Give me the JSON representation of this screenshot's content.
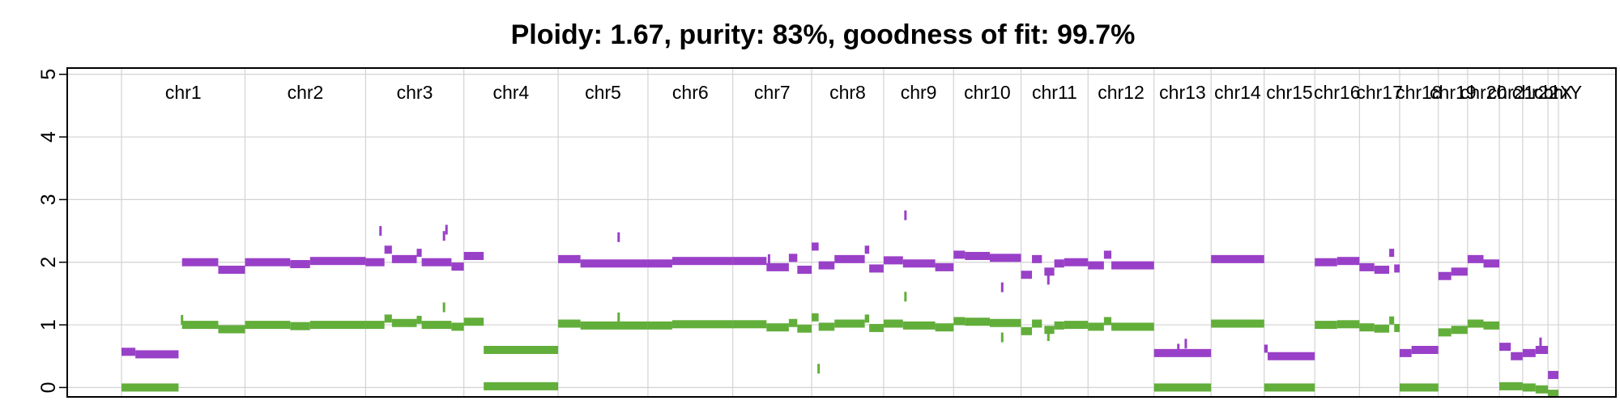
{
  "chart_data": {
    "type": "scatter",
    "title": "Ploidy: 1.67, purity: 83%, goodness of fit: 99.7%",
    "xlabel": "",
    "ylabel": "",
    "ylim": [
      -0.15,
      5.1
    ],
    "y_ticks": [
      "0",
      "1",
      "2",
      "3",
      "4",
      "5"
    ],
    "grid": true,
    "colors": {
      "total_copy_number": "#9940C8",
      "minor_copy_number": "#62AE3A",
      "grid": "#d3d3d3",
      "frame": "#000000"
    },
    "chromosomes": [
      {
        "label": "chr1",
        "start": 0,
        "end": 249
      },
      {
        "label": "chr2",
        "start": 249,
        "end": 492
      },
      {
        "label": "chr3",
        "start": 492,
        "end": 690
      },
      {
        "label": "chr4",
        "start": 690,
        "end": 880
      },
      {
        "label": "chr5",
        "start": 880,
        "end": 1061
      },
      {
        "label": "chr6",
        "start": 1061,
        "end": 1232
      },
      {
        "label": "chr7",
        "start": 1232,
        "end": 1391
      },
      {
        "label": "chr8",
        "start": 1391,
        "end": 1536
      },
      {
        "label": "chr9",
        "start": 1536,
        "end": 1677
      },
      {
        "label": "chr10",
        "start": 1677,
        "end": 1813
      },
      {
        "label": "chr11",
        "start": 1813,
        "end": 1948
      },
      {
        "label": "chr12",
        "start": 1948,
        "end": 2081
      },
      {
        "label": "chr13",
        "start": 2081,
        "end": 2196
      },
      {
        "label": "chr14",
        "start": 2196,
        "end": 2303
      },
      {
        "label": "chr15",
        "start": 2303,
        "end": 2405
      },
      {
        "label": "chr16",
        "start": 2405,
        "end": 2495
      },
      {
        "label": "chr17",
        "start": 2495,
        "end": 2576
      },
      {
        "label": "chr18",
        "start": 2576,
        "end": 2654
      },
      {
        "label": "chr19",
        "start": 2654,
        "end": 2713
      },
      {
        "label": "chr20",
        "start": 2713,
        "end": 2777
      },
      {
        "label": "chr21",
        "start": 2777,
        "end": 2824
      },
      {
        "label": "chr22",
        "start": 2824,
        "end": 2875
      },
      {
        "label": "chrX",
        "start": 2875,
        "end": 2896
      },
      {
        "label": "chrY",
        "start": 2896,
        "end": 2914
      }
    ],
    "series": [
      {
        "segments": [
          {
            "chr": "chr1",
            "start": 0,
            "end": 28,
            "value": 0.57
          },
          {
            "chr": "chr1",
            "start": 28,
            "end": 115,
            "value": 0.53
          },
          {
            "chr": "chr1",
            "start": 122,
            "end": 195,
            "value": 2.0
          },
          {
            "chr": "chr1",
            "start": 195,
            "end": 249,
            "value": 1.88
          },
          {
            "chr": "chr2",
            "start": 249,
            "end": 340,
            "value": 2.0
          },
          {
            "chr": "chr2",
            "start": 340,
            "end": 380,
            "value": 1.97
          },
          {
            "chr": "chr2",
            "start": 380,
            "end": 492,
            "value": 2.02
          },
          {
            "chr": "chr3",
            "start": 492,
            "end": 530,
            "value": 2.0
          },
          {
            "chr": "chr3",
            "start": 530,
            "end": 545,
            "value": 2.2
          },
          {
            "chr": "chr3",
            "start": 545,
            "end": 595,
            "value": 2.05
          },
          {
            "chr": "chr3",
            "start": 595,
            "end": 605,
            "value": 2.15
          },
          {
            "chr": "chr3",
            "start": 605,
            "end": 665,
            "value": 2.0
          },
          {
            "chr": "chr3",
            "start": 665,
            "end": 690,
            "value": 1.93
          },
          {
            "chr": "chr4",
            "start": 690,
            "end": 730,
            "value": 2.1
          },
          {
            "chr": "chr5",
            "start": 880,
            "end": 925,
            "value": 2.05
          },
          {
            "chr": "chr5",
            "start": 925,
            "end": 1061,
            "value": 1.98
          },
          {
            "chr": "chr6",
            "start": 1061,
            "end": 1110,
            "value": 1.98
          },
          {
            "chr": "chr6",
            "start": 1110,
            "end": 1232,
            "value": 2.02
          },
          {
            "chr": "chr7",
            "start": 1232,
            "end": 1300,
            "value": 2.02
          },
          {
            "chr": "chr7",
            "start": 1300,
            "end": 1345,
            "value": 1.92
          },
          {
            "chr": "chr7",
            "start": 1345,
            "end": 1362,
            "value": 2.07
          },
          {
            "chr": "chr7",
            "start": 1362,
            "end": 1391,
            "value": 1.88
          },
          {
            "chr": "chr8",
            "start": 1391,
            "end": 1405,
            "value": 2.25
          },
          {
            "chr": "chr8",
            "start": 1405,
            "end": 1437,
            "value": 1.95
          },
          {
            "chr": "chr8",
            "start": 1437,
            "end": 1498,
            "value": 2.05
          },
          {
            "chr": "chr8",
            "start": 1498,
            "end": 1507,
            "value": 2.2
          },
          {
            "chr": "chr8",
            "start": 1507,
            "end": 1536,
            "value": 1.9
          },
          {
            "chr": "chr9",
            "start": 1536,
            "end": 1575,
            "value": 2.03
          },
          {
            "chr": "chr9",
            "start": 1575,
            "end": 1640,
            "value": 1.98
          },
          {
            "chr": "chr9",
            "start": 1640,
            "end": 1677,
            "value": 1.92
          },
          {
            "chr": "chr10",
            "start": 1677,
            "end": 1700,
            "value": 2.12
          },
          {
            "chr": "chr10",
            "start": 1700,
            "end": 1750,
            "value": 2.1
          },
          {
            "chr": "chr10",
            "start": 1750,
            "end": 1813,
            "value": 2.07
          },
          {
            "chr": "chr11",
            "start": 1813,
            "end": 1835,
            "value": 1.8
          },
          {
            "chr": "chr11",
            "start": 1835,
            "end": 1855,
            "value": 2.05
          },
          {
            "chr": "chr11",
            "start": 1860,
            "end": 1880,
            "value": 1.85
          },
          {
            "chr": "chr11",
            "start": 1880,
            "end": 1900,
            "value": 1.98
          },
          {
            "chr": "chr11",
            "start": 1900,
            "end": 1948,
            "value": 2.0
          },
          {
            "chr": "chr12",
            "start": 1948,
            "end": 1980,
            "value": 1.95
          },
          {
            "chr": "chr12",
            "start": 1980,
            "end": 1995,
            "value": 2.12
          },
          {
            "chr": "chr12",
            "start": 1995,
            "end": 2081,
            "value": 1.95
          },
          {
            "chr": "chr13",
            "start": 2081,
            "end": 2196,
            "value": 0.55
          },
          {
            "chr": "chr14",
            "start": 2196,
            "end": 2303,
            "value": 2.05
          },
          {
            "chr": "chr15",
            "start": 2303,
            "end": 2310,
            "value": 0.62
          },
          {
            "chr": "chr15",
            "start": 2310,
            "end": 2405,
            "value": 0.5
          },
          {
            "chr": "chr16",
            "start": 2405,
            "end": 2450,
            "value": 2.0
          },
          {
            "chr": "chr16",
            "start": 2450,
            "end": 2495,
            "value": 2.02
          },
          {
            "chr": "chr17",
            "start": 2495,
            "end": 2525,
            "value": 1.92
          },
          {
            "chr": "chr17",
            "start": 2525,
            "end": 2555,
            "value": 1.88
          },
          {
            "chr": "chr17",
            "start": 2555,
            "end": 2565,
            "value": 2.15
          },
          {
            "chr": "chr17",
            "start": 2565,
            "end": 2576,
            "value": 1.9
          },
          {
            "chr": "chr18",
            "start": 2576,
            "end": 2600,
            "value": 0.55
          },
          {
            "chr": "chr18",
            "start": 2600,
            "end": 2654,
            "value": 0.6
          },
          {
            "chr": "chr19",
            "start": 2654,
            "end": 2680,
            "value": 1.78
          },
          {
            "chr": "chr19",
            "start": 2680,
            "end": 2713,
            "value": 1.85
          },
          {
            "chr": "chr20",
            "start": 2713,
            "end": 2745,
            "value": 2.05
          },
          {
            "chr": "chr20",
            "start": 2745,
            "end": 2777,
            "value": 1.98
          },
          {
            "chr": "chr21",
            "start": 2777,
            "end": 2800,
            "value": 0.65
          },
          {
            "chr": "chr21",
            "start": 2800,
            "end": 2824,
            "value": 0.5
          },
          {
            "chr": "chr22",
            "start": 2824,
            "end": 2850,
            "value": 0.55
          },
          {
            "chr": "chr22",
            "start": 2850,
            "end": 2875,
            "value": 0.6
          },
          {
            "chr": "chrX",
            "start": 2875,
            "end": 2896,
            "value": 0.2
          }
        ],
        "points": [
          {
            "x": 522,
            "y": 2.5
          },
          {
            "x": 655,
            "y": 2.52
          },
          {
            "x": 650,
            "y": 2.42
          },
          {
            "x": 1002,
            "y": 2.4
          },
          {
            "x": 1580,
            "y": 2.75
          },
          {
            "x": 1775,
            "y": 1.6
          },
          {
            "x": 1868,
            "y": 1.72
          },
          {
            "x": 1305,
            "y": 2.05
          },
          {
            "x": 2130,
            "y": 0.62
          },
          {
            "x": 2145,
            "y": 0.7
          },
          {
            "x": 2860,
            "y": 0.72
          }
        ]
      },
      {
        "segments": [
          {
            "chr": "chr1",
            "start": 0,
            "end": 115,
            "value": 0.0
          },
          {
            "chr": "chr1",
            "start": 122,
            "end": 195,
            "value": 1.0
          },
          {
            "chr": "chr1",
            "start": 195,
            "end": 249,
            "value": 0.93
          },
          {
            "chr": "chr2",
            "start": 249,
            "end": 340,
            "value": 1.0
          },
          {
            "chr": "chr2",
            "start": 340,
            "end": 380,
            "value": 0.98
          },
          {
            "chr": "chr2",
            "start": 380,
            "end": 492,
            "value": 1.0
          },
          {
            "chr": "chr3",
            "start": 492,
            "end": 530,
            "value": 1.0
          },
          {
            "chr": "chr3",
            "start": 530,
            "end": 545,
            "value": 1.1
          },
          {
            "chr": "chr3",
            "start": 545,
            "end": 595,
            "value": 1.03
          },
          {
            "chr": "chr3",
            "start": 595,
            "end": 605,
            "value": 1.08
          },
          {
            "chr": "chr3",
            "start": 605,
            "end": 665,
            "value": 1.0
          },
          {
            "chr": "chr3",
            "start": 665,
            "end": 690,
            "value": 0.97
          },
          {
            "chr": "chr4",
            "start": 690,
            "end": 730,
            "value": 1.05
          },
          {
            "chr": "chr4",
            "start": 730,
            "end": 880,
            "value": 0.6
          },
          {
            "chr": "chr4",
            "start": 730,
            "end": 880,
            "value": 0.02
          },
          {
            "chr": "chr5",
            "start": 880,
            "end": 925,
            "value": 1.02
          },
          {
            "chr": "chr5",
            "start": 925,
            "end": 1061,
            "value": 0.99
          },
          {
            "chr": "chr6",
            "start": 1061,
            "end": 1110,
            "value": 0.99
          },
          {
            "chr": "chr6",
            "start": 1110,
            "end": 1232,
            "value": 1.01
          },
          {
            "chr": "chr7",
            "start": 1232,
            "end": 1300,
            "value": 1.01
          },
          {
            "chr": "chr7",
            "start": 1300,
            "end": 1345,
            "value": 0.96
          },
          {
            "chr": "chr7",
            "start": 1345,
            "end": 1362,
            "value": 1.03
          },
          {
            "chr": "chr7",
            "start": 1362,
            "end": 1391,
            "value": 0.94
          },
          {
            "chr": "chr8",
            "start": 1391,
            "end": 1405,
            "value": 1.12
          },
          {
            "chr": "chr8",
            "start": 1405,
            "end": 1437,
            "value": 0.97
          },
          {
            "chr": "chr8",
            "start": 1437,
            "end": 1498,
            "value": 1.02
          },
          {
            "chr": "chr8",
            "start": 1498,
            "end": 1507,
            "value": 1.1
          },
          {
            "chr": "chr8",
            "start": 1507,
            "end": 1536,
            "value": 0.95
          },
          {
            "chr": "chr9",
            "start": 1536,
            "end": 1575,
            "value": 1.02
          },
          {
            "chr": "chr9",
            "start": 1575,
            "end": 1640,
            "value": 0.99
          },
          {
            "chr": "chr9",
            "start": 1640,
            "end": 1677,
            "value": 0.96
          },
          {
            "chr": "chr10",
            "start": 1677,
            "end": 1700,
            "value": 1.06
          },
          {
            "chr": "chr10",
            "start": 1700,
            "end": 1750,
            "value": 1.05
          },
          {
            "chr": "chr10",
            "start": 1750,
            "end": 1813,
            "value": 1.03
          },
          {
            "chr": "chr11",
            "start": 1813,
            "end": 1835,
            "value": 0.9
          },
          {
            "chr": "chr11",
            "start": 1835,
            "end": 1855,
            "value": 1.02
          },
          {
            "chr": "chr11",
            "start": 1860,
            "end": 1880,
            "value": 0.92
          },
          {
            "chr": "chr11",
            "start": 1880,
            "end": 1900,
            "value": 0.99
          },
          {
            "chr": "chr11",
            "start": 1900,
            "end": 1948,
            "value": 1.0
          },
          {
            "chr": "chr12",
            "start": 1948,
            "end": 1980,
            "value": 0.97
          },
          {
            "chr": "chr12",
            "start": 1980,
            "end": 1995,
            "value": 1.06
          },
          {
            "chr": "chr12",
            "start": 1995,
            "end": 2081,
            "value": 0.97
          },
          {
            "chr": "chr13",
            "start": 2081,
            "end": 2196,
            "value": 0.0
          },
          {
            "chr": "chr14",
            "start": 2196,
            "end": 2303,
            "value": 1.02
          },
          {
            "chr": "chr15",
            "start": 2303,
            "end": 2405,
            "value": 0.0
          },
          {
            "chr": "chr16",
            "start": 2405,
            "end": 2450,
            "value": 1.0
          },
          {
            "chr": "chr16",
            "start": 2450,
            "end": 2495,
            "value": 1.01
          },
          {
            "chr": "chr17",
            "start": 2495,
            "end": 2525,
            "value": 0.96
          },
          {
            "chr": "chr17",
            "start": 2525,
            "end": 2555,
            "value": 0.94
          },
          {
            "chr": "chr17",
            "start": 2555,
            "end": 2565,
            "value": 1.07
          },
          {
            "chr": "chr17",
            "start": 2565,
            "end": 2576,
            "value": 0.95
          },
          {
            "chr": "chr18",
            "start": 2576,
            "end": 2654,
            "value": 0.0
          },
          {
            "chr": "chr19",
            "start": 2654,
            "end": 2680,
            "value": 0.88
          },
          {
            "chr": "chr19",
            "start": 2680,
            "end": 2713,
            "value": 0.92
          },
          {
            "chr": "chr20",
            "start": 2713,
            "end": 2745,
            "value": 1.02
          },
          {
            "chr": "chr20",
            "start": 2745,
            "end": 2777,
            "value": 0.99
          },
          {
            "chr": "chr21",
            "start": 2777,
            "end": 2824,
            "value": 0.02
          },
          {
            "chr": "chr22",
            "start": 2824,
            "end": 2850,
            "value": 0.0
          },
          {
            "chr": "chr22",
            "start": 2850,
            "end": 2875,
            "value": -0.03
          },
          {
            "chr": "chrX",
            "start": 2875,
            "end": 2896,
            "value": -0.1
          }
        ],
        "points": [
          {
            "x": 122,
            "y": 1.08
          },
          {
            "x": 650,
            "y": 1.28
          },
          {
            "x": 1002,
            "y": 1.12
          },
          {
            "x": 1405,
            "y": 0.3
          },
          {
            "x": 1580,
            "y": 1.45
          },
          {
            "x": 1775,
            "y": 0.8
          },
          {
            "x": 1868,
            "y": 0.82
          }
        ]
      }
    ]
  }
}
